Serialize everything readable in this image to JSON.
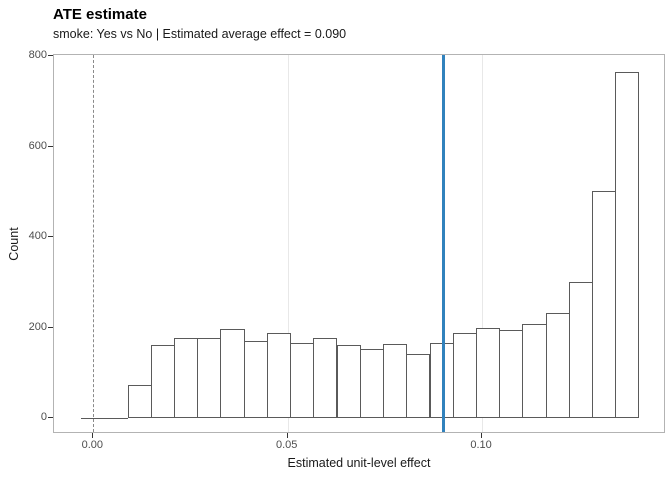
{
  "header": {
    "title": "ATE estimate",
    "subtitle": "smoke: Yes vs No | Estimated average effect = 0.090"
  },
  "chart_data": {
    "type": "bar",
    "subtype": "histogram",
    "title": "ATE estimate",
    "subtitle": "smoke: Yes vs No | Estimated average effect = 0.090",
    "xlabel": "Estimated unit-level effect",
    "ylabel": "Count",
    "xlim": [
      -0.0101,
      0.1472
    ],
    "ylim": [
      0,
      800
    ],
    "grid": "vertical-major-only",
    "x_ticks": [
      {
        "value": 0.0,
        "label": "0.00"
      },
      {
        "value": 0.05,
        "label": "0.05"
      },
      {
        "value": 0.1,
        "label": "0.10"
      }
    ],
    "y_ticks": [
      {
        "value": 0,
        "label": "0"
      },
      {
        "value": 200,
        "label": "200"
      },
      {
        "value": 400,
        "label": "400"
      },
      {
        "value": 600,
        "label": "600"
      },
      {
        "value": 800,
        "label": "800"
      }
    ],
    "gridline_x_values": [
      0.05,
      0.1
    ],
    "bins": {
      "start": -0.00316,
      "width": 0.005975,
      "counts": [
        0,
        0,
        74,
        162,
        176,
        178,
        198,
        170,
        189,
        167,
        177,
        161,
        153,
        164,
        142,
        166,
        188,
        199,
        195,
        207,
        233,
        302,
        503,
        766
      ]
    },
    "bar_style": {
      "fill": "#ffffff",
      "stroke": "#5a5a5a"
    },
    "reference_lines": [
      {
        "name": "zero-effect-line",
        "x": 0.0,
        "style": "dashed",
        "color": "#8a8a8a"
      },
      {
        "name": "average-effect-line",
        "x": 0.09,
        "style": "solid",
        "color": "#3182bd"
      }
    ],
    "colors": {
      "panel_border": "#b3b3b3",
      "gridline": "#e8e8e8",
      "tick_text": "#4d4d4d",
      "axis_text": "#1a1a1a",
      "accent_blue": "#3182bd"
    }
  }
}
